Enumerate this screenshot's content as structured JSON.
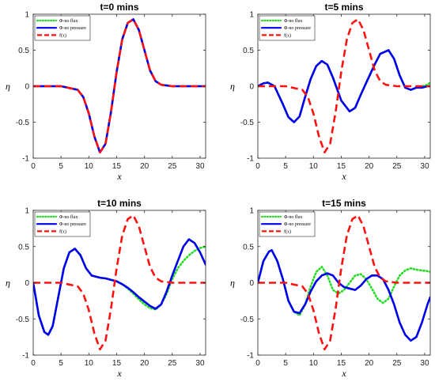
{
  "colors": {
    "no_flux": "#22dd22",
    "no_pressure": "#0000ee",
    "f": "#ff1111"
  },
  "chart_data": [
    {
      "type": "line",
      "title": "t=0 mins",
      "xlabel": "x",
      "ylabel": "η",
      "xlim": [
        0,
        31
      ],
      "ylim": [
        -1,
        1
      ],
      "xticks": [
        "0",
        "5",
        "10",
        "15",
        "20",
        "25",
        "30"
      ],
      "yticks": [
        "-1",
        "-0.5",
        "0",
        "0.5",
        "1"
      ],
      "legend_position": "top-left",
      "series": [
        {
          "name": "Φ-no flux",
          "color": "#22dd22",
          "style": "dotted",
          "x": [
            0,
            5,
            8,
            9,
            10,
            11,
            12,
            13,
            14,
            15,
            16,
            17,
            18,
            19,
            20,
            21,
            22,
            23,
            25,
            31
          ],
          "y": [
            0,
            0,
            -0.05,
            -0.15,
            -0.38,
            -0.7,
            -0.92,
            -0.8,
            -0.35,
            0.2,
            0.65,
            0.88,
            0.93,
            0.78,
            0.5,
            0.22,
            0.07,
            0.02,
            0,
            0
          ]
        },
        {
          "name": "Φ-no pressure",
          "color": "#0000ee",
          "style": "solid",
          "x": [
            0,
            5,
            8,
            9,
            10,
            11,
            12,
            13,
            14,
            15,
            16,
            17,
            18,
            19,
            20,
            21,
            22,
            23,
            25,
            31
          ],
          "y": [
            0,
            0,
            -0.05,
            -0.15,
            -0.38,
            -0.7,
            -0.92,
            -0.8,
            -0.35,
            0.2,
            0.65,
            0.88,
            0.93,
            0.78,
            0.5,
            0.22,
            0.07,
            0.02,
            0,
            0
          ]
        },
        {
          "name": "f(x)",
          "color": "#ff1111",
          "style": "dashed",
          "x": [
            0,
            5,
            8,
            9,
            10,
            11,
            12,
            13,
            14,
            15,
            16,
            17,
            18,
            19,
            20,
            21,
            22,
            23,
            25,
            31
          ],
          "y": [
            0,
            0,
            -0.05,
            -0.15,
            -0.38,
            -0.7,
            -0.92,
            -0.8,
            -0.35,
            0.2,
            0.65,
            0.88,
            0.93,
            0.78,
            0.5,
            0.22,
            0.07,
            0.02,
            0,
            0
          ]
        }
      ]
    },
    {
      "type": "line",
      "title": "t=5 mins",
      "xlabel": "x",
      "ylabel": "η",
      "xlim": [
        0,
        31
      ],
      "ylim": [
        -1,
        1
      ],
      "xticks": [
        "0",
        "5",
        "10",
        "15",
        "20",
        "25",
        "30"
      ],
      "yticks": [
        "-1",
        "-0.5",
        "0",
        "0.5",
        "1"
      ],
      "legend_position": "top-left",
      "series": [
        {
          "name": "Φ-no flux",
          "color": "#22dd22",
          "style": "dotted",
          "x": [
            0,
            1,
            1.8,
            3,
            4.5,
            5.5,
            6.5,
            7.5,
            8.5,
            9.5,
            10.5,
            11.5,
            12.5,
            13.5,
            15,
            16.5,
            17.5,
            18.5,
            19.5,
            21,
            22,
            23.5,
            24.5,
            25.5,
            26.5,
            27.5,
            28.5,
            29.5,
            30.5,
            31
          ],
          "y": [
            0,
            0.04,
            0.05,
            0,
            -0.25,
            -0.43,
            -0.5,
            -0.42,
            -0.15,
            0.1,
            0.28,
            0.35,
            0.3,
            0.12,
            -0.2,
            -0.35,
            -0.3,
            -0.12,
            0.05,
            0.3,
            0.45,
            0.5,
            0.38,
            0.15,
            -0.02,
            -0.05,
            -0.02,
            0,
            0.02,
            0.05
          ]
        },
        {
          "name": "Φ-no pressure",
          "color": "#0000ee",
          "style": "solid",
          "x": [
            0,
            1,
            1.8,
            3,
            4.5,
            5.5,
            6.5,
            7.5,
            8.5,
            9.5,
            10.5,
            11.5,
            12.5,
            13.5,
            15,
            16.5,
            17.5,
            18.5,
            19.5,
            21,
            22,
            23.5,
            24.5,
            25.5,
            26.5,
            27.5,
            28.5,
            29.5,
            30.5,
            31
          ],
          "y": [
            0,
            0.04,
            0.05,
            0,
            -0.25,
            -0.43,
            -0.5,
            -0.42,
            -0.15,
            0.1,
            0.28,
            0.35,
            0.3,
            0.12,
            -0.2,
            -0.35,
            -0.3,
            -0.12,
            0.05,
            0.3,
            0.45,
            0.5,
            0.38,
            0.15,
            -0.02,
            -0.05,
            -0.02,
            -0.02,
            0,
            0
          ]
        },
        {
          "name": "f(x)",
          "color": "#ff1111",
          "style": "dashed",
          "x": [
            0,
            5,
            8,
            9,
            10,
            11,
            12,
            13,
            14,
            15,
            16,
            17,
            18,
            19,
            20,
            21,
            22,
            23,
            25,
            31
          ],
          "y": [
            0,
            0,
            -0.05,
            -0.15,
            -0.38,
            -0.7,
            -0.92,
            -0.8,
            -0.35,
            0.2,
            0.65,
            0.88,
            0.93,
            0.78,
            0.5,
            0.22,
            0.07,
            0.02,
            0,
            0
          ]
        }
      ]
    },
    {
      "type": "line",
      "title": "t=10 mins",
      "xlabel": "x",
      "ylabel": "η",
      "xlim": [
        0,
        31
      ],
      "ylim": [
        -1,
        1
      ],
      "xticks": [
        "0",
        "5",
        "10",
        "15",
        "20",
        "25",
        "30"
      ],
      "yticks": [
        "-1",
        "-0.5",
        "0",
        "0.5",
        "1"
      ],
      "legend_position": "top-left",
      "series": [
        {
          "name": "Φ-no flux",
          "color": "#22dd22",
          "style": "dotted",
          "x": [
            0,
            1,
            2,
            2.7,
            3.5,
            4.5,
            5.5,
            6.5,
            7.5,
            8.5,
            9.5,
            10.5,
            12,
            13,
            14,
            15,
            16,
            17,
            18,
            19,
            20,
            21,
            22,
            23,
            24,
            25,
            26,
            27,
            28,
            29,
            30,
            31
          ],
          "y": [
            0,
            -0.45,
            -0.68,
            -0.72,
            -0.6,
            -0.2,
            0.2,
            0.42,
            0.47,
            0.38,
            0.2,
            0.1,
            0.07,
            0.06,
            0.04,
            0.02,
            -0.02,
            -0.08,
            -0.15,
            -0.23,
            -0.3,
            -0.35,
            -0.37,
            -0.3,
            -0.15,
            0.05,
            0.2,
            0.3,
            0.38,
            0.44,
            0.48,
            0.5
          ]
        },
        {
          "name": "Φ-no pressure",
          "color": "#0000ee",
          "style": "solid",
          "x": [
            0,
            1,
            2,
            2.7,
            3.5,
            4.5,
            5.5,
            6.5,
            7.5,
            8.5,
            9.5,
            10.5,
            12,
            13,
            14,
            15,
            16,
            17,
            18,
            19,
            20,
            21,
            22,
            23,
            24,
            25,
            26,
            27,
            28,
            29,
            30,
            31
          ],
          "y": [
            0,
            -0.45,
            -0.68,
            -0.72,
            -0.6,
            -0.2,
            0.2,
            0.42,
            0.47,
            0.38,
            0.2,
            0.1,
            0.07,
            0.06,
            0.04,
            0.02,
            -0.02,
            -0.07,
            -0.13,
            -0.2,
            -0.26,
            -0.32,
            -0.36,
            -0.3,
            -0.12,
            0.1,
            0.3,
            0.5,
            0.6,
            0.55,
            0.42,
            0.25
          ]
        },
        {
          "name": "f(x)",
          "color": "#ff1111",
          "style": "dashed",
          "x": [
            0,
            5,
            8,
            9,
            10,
            11,
            12,
            13,
            14,
            15,
            16,
            17,
            18,
            19,
            20,
            21,
            22,
            23,
            25,
            31
          ],
          "y": [
            0,
            0,
            -0.05,
            -0.15,
            -0.38,
            -0.7,
            -0.92,
            -0.8,
            -0.35,
            0.2,
            0.65,
            0.88,
            0.93,
            0.78,
            0.5,
            0.22,
            0.07,
            0.02,
            0,
            0
          ]
        }
      ]
    },
    {
      "type": "line",
      "title": "t=15 mins",
      "xlabel": "x",
      "ylabel": "η",
      "xlim": [
        0,
        31
      ],
      "ylim": [
        -1,
        1
      ],
      "xticks": [
        "0",
        "5",
        "10",
        "15",
        "20",
        "25",
        "30"
      ],
      "yticks": [
        "-1",
        "-0.5",
        "0",
        "0.5",
        "1"
      ],
      "legend_position": "top-left",
      "series": [
        {
          "name": "Φ-no flux",
          "color": "#22dd22",
          "style": "dotted",
          "x": [
            0,
            1,
            2,
            2.5,
            3.5,
            4.5,
            5.5,
            6.5,
            7.5,
            8.5,
            9.5,
            10.5,
            11.5,
            12.5,
            13.5,
            14.5,
            15.5,
            16.5,
            17.5,
            18.5,
            19.5,
            20.5,
            21.5,
            22.5,
            23.5,
            24.5,
            25.5,
            26.5,
            27.5,
            28.5,
            29.5,
            30.5,
            31
          ],
          "y": [
            0,
            0.3,
            0.43,
            0.45,
            0.3,
            0.05,
            -0.25,
            -0.4,
            -0.45,
            -0.3,
            -0.05,
            0.15,
            0.22,
            0.1,
            -0.1,
            -0.15,
            -0.1,
            0.0,
            0.1,
            0.12,
            0.05,
            -0.08,
            -0.22,
            -0.28,
            -0.22,
            -0.05,
            0.1,
            0.17,
            0.2,
            0.18,
            0.17,
            0.16,
            0.15
          ]
        },
        {
          "name": "Φ-no pressure",
          "color": "#0000ee",
          "style": "solid",
          "x": [
            0,
            1,
            2,
            2.5,
            3.5,
            4.5,
            5.5,
            6.5,
            7.5,
            8.5,
            9.5,
            10.5,
            11.5,
            12.5,
            13.5,
            14.5,
            15.5,
            16.5,
            17.5,
            18.5,
            19.5,
            20.5,
            21.5,
            22.5,
            23.5,
            24.5,
            25.5,
            26.5,
            27.5,
            28.5,
            29.5,
            30.5,
            31
          ],
          "y": [
            0,
            0.3,
            0.43,
            0.45,
            0.3,
            0.05,
            -0.25,
            -0.4,
            -0.42,
            -0.3,
            -0.12,
            0.02,
            0.1,
            0.13,
            0.1,
            0.0,
            -0.06,
            -0.08,
            -0.1,
            -0.04,
            0.05,
            0.1,
            0.1,
            0.05,
            -0.1,
            -0.3,
            -0.55,
            -0.72,
            -0.8,
            -0.75,
            -0.55,
            -0.3,
            -0.2
          ]
        },
        {
          "name": "f(x)",
          "color": "#ff1111",
          "style": "dashed",
          "x": [
            0,
            5,
            8,
            9,
            10,
            11,
            12,
            13,
            14,
            15,
            16,
            17,
            18,
            19,
            20,
            21,
            22,
            23,
            25,
            31
          ],
          "y": [
            0,
            0,
            -0.05,
            -0.15,
            -0.38,
            -0.7,
            -0.92,
            -0.8,
            -0.35,
            0.2,
            0.65,
            0.88,
            0.93,
            0.78,
            0.5,
            0.22,
            0.07,
            0.02,
            0,
            0
          ]
        }
      ]
    }
  ]
}
